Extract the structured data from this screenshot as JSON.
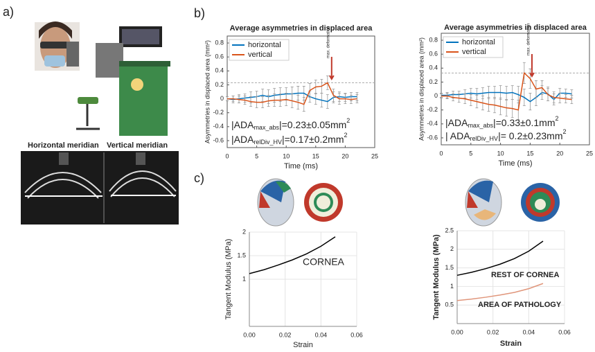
{
  "figure": {
    "panel_labels": [
      "a)",
      "b)",
      "c)"
    ],
    "photo_captions": [
      "Horizontal meridian",
      "Vertical meridian"
    ]
  },
  "chart_data": [
    {
      "type": "line",
      "title": "Average asymmetries in displaced area",
      "xlabel": "Time (ms)",
      "ylabel": "Asymmetries in displaced area (mm²)",
      "x": [
        0,
        1,
        2,
        3,
        4,
        5,
        6,
        7,
        8,
        9,
        10,
        11,
        12,
        13,
        14,
        15,
        16,
        17,
        18,
        19,
        20,
        21,
        22
      ],
      "xlim": [
        0,
        25
      ],
      "xticks": [
        0,
        5,
        10,
        15,
        20,
        25
      ],
      "ylim": [
        -0.7,
        0.9
      ],
      "yticks": [
        -0.6,
        -0.4,
        -0.2,
        0,
        0.2,
        0.4,
        0.6,
        0.8
      ],
      "legend": "upper left",
      "reference_line": 0.23,
      "marker_annotation": "max. deformation",
      "annotations": [
        [
          "|ADA",
          "max_abs",
          "|=0.23±0.05mm",
          "2"
        ],
        [
          "|ADA",
          "relDiv_HV",
          "|=0.17±0.2mm",
          "2"
        ]
      ],
      "series": [
        {
          "name": "horizontal",
          "color": "#0072bd",
          "values": [
            0,
            -0.01,
            0,
            0.01,
            0.02,
            0.03,
            0.05,
            0.03,
            0.05,
            0.06,
            0.07,
            0.07,
            0.08,
            0.08,
            0.03,
            0,
            -0.02,
            -0.04,
            0.02,
            0.03,
            0.02,
            0.03,
            0.03
          ],
          "errors": [
            0.03,
            0.05,
            0.06,
            0.06,
            0.08,
            0.08,
            0.09,
            0.1,
            0.1,
            0.1,
            0.09,
            0.1,
            0.1,
            0.1,
            0.08,
            0.08,
            0.1,
            0.1,
            0.08,
            0.07,
            0.06,
            0.06,
            0.06
          ]
        },
        {
          "name": "vertical",
          "color": "#d95319",
          "values": [
            0,
            0,
            -0.01,
            -0.02,
            -0.04,
            -0.05,
            -0.05,
            -0.03,
            -0.02,
            -0.02,
            -0.01,
            -0.03,
            -0.05,
            -0.08,
            0.12,
            0.17,
            0.18,
            0.23,
            0.05,
            0,
            0,
            -0.01,
            0
          ],
          "errors": [
            0.03,
            0.04,
            0.05,
            0.06,
            0.07,
            0.08,
            0.08,
            0.08,
            0.09,
            0.09,
            0.09,
            0.1,
            0.1,
            0.1,
            0.1,
            0.1,
            0.1,
            0.1,
            0.09,
            0.08,
            0.07,
            0.06,
            0.06
          ]
        }
      ]
    },
    {
      "type": "line",
      "title": "Average asymmetries in displaced area",
      "xlabel": "Time (ms)",
      "ylabel": "Asymmetries in displaced area (mm²)",
      "x": [
        0,
        1,
        2,
        3,
        4,
        5,
        6,
        7,
        8,
        9,
        10,
        11,
        12,
        13,
        14,
        15,
        16,
        17,
        18,
        19,
        20,
        21,
        22
      ],
      "xlim": [
        0,
        25
      ],
      "xticks": [
        0,
        5,
        10,
        15,
        20,
        25
      ],
      "ylim": [
        -0.7,
        0.9
      ],
      "yticks": [
        -0.6,
        -0.4,
        -0.2,
        0,
        0.2,
        0.4,
        0.6,
        0.8
      ],
      "legend": "upper left",
      "reference_line": 0.33,
      "marker_annotation": "max. deformation",
      "annotations": [
        [
          "|ADA",
          "max_abs",
          "|=0.33±0.1mm",
          "2"
        ],
        [
          "| ADA",
          "relDiv_HV",
          "|= 0.2±0.23mm",
          "2"
        ]
      ],
      "series": [
        {
          "name": "horizontal",
          "color": "#0072bd",
          "values": [
            0.01,
            0.01,
            0.02,
            0.02,
            0.03,
            0.04,
            0.03,
            0.04,
            0.05,
            0.05,
            0.05,
            0.04,
            0.05,
            0.02,
            -0.02,
            -0.08,
            -0.02,
            0.05,
            0.03,
            -0.05,
            0.04,
            0.04,
            0.03
          ],
          "errors": [
            0.03,
            0.04,
            0.05,
            0.05,
            0.06,
            0.07,
            0.08,
            0.08,
            0.09,
            0.09,
            0.1,
            0.1,
            0.1,
            0.12,
            0.12,
            0.12,
            0.12,
            0.1,
            0.1,
            0.08,
            0.07,
            0.06,
            0.06
          ]
        },
        {
          "name": "vertical",
          "color": "#d95319",
          "values": [
            0,
            0,
            -0.02,
            -0.03,
            -0.04,
            -0.06,
            -0.08,
            -0.1,
            -0.12,
            -0.13,
            -0.15,
            -0.17,
            -0.18,
            -0.2,
            0.33,
            0.25,
            0.1,
            0.12,
            0.02,
            -0.02,
            -0.03,
            -0.04,
            -0.05
          ],
          "errors": [
            0.03,
            0.04,
            0.05,
            0.06,
            0.07,
            0.08,
            0.09,
            0.1,
            0.1,
            0.11,
            0.12,
            0.12,
            0.13,
            0.14,
            0.15,
            0.14,
            0.12,
            0.1,
            0.09,
            0.08,
            0.07,
            0.06,
            0.06
          ]
        }
      ]
    },
    {
      "type": "line",
      "xlabel": "Strain",
      "ylabel": "Tangent Modulus (MPa)",
      "x": [
        0,
        0.008,
        0.016,
        0.024,
        0.032,
        0.04,
        0.048
      ],
      "xlim": [
        0,
        0.06
      ],
      "xticks": [
        {
          "value": 0,
          "label": "0.00"
        },
        {
          "value": 0.02,
          "label": "0.02"
        },
        {
          "value": 0.04,
          "label": "0.04"
        },
        {
          "value": 0.06,
          "label": "0.06"
        }
      ],
      "ylim": [
        0,
        2
      ],
      "yticks": [
        1,
        1.5,
        2
      ],
      "grid": true,
      "series": [
        {
          "name": "CORNEA",
          "color": "#000000",
          "values": [
            1.12,
            1.2,
            1.3,
            1.41,
            1.54,
            1.7,
            1.9
          ]
        }
      ]
    },
    {
      "type": "line",
      "xlabel": "Strain",
      "ylabel": "Tangent Modulus (MPa)",
      "x": [
        0,
        0.008,
        0.016,
        0.024,
        0.032,
        0.04,
        0.048
      ],
      "xlim": [
        0,
        0.06
      ],
      "xticks": [
        {
          "value": 0,
          "label": "0.00"
        },
        {
          "value": 0.02,
          "label": "0.02"
        },
        {
          "value": 0.04,
          "label": "0.04"
        },
        {
          "value": 0.06,
          "label": "0.06"
        }
      ],
      "ylim": [
        0,
        2.5
      ],
      "yticks": [
        0.5,
        1,
        1.5,
        2,
        2.5
      ],
      "grid": true,
      "series": [
        {
          "name": "REST OF CORNEA",
          "color": "#000000",
          "values": [
            1.3,
            1.38,
            1.48,
            1.6,
            1.75,
            1.95,
            2.22
          ]
        },
        {
          "name": "AREA OF PATHOLOGY",
          "color": "#e0957a",
          "values": [
            0.62,
            0.66,
            0.71,
            0.77,
            0.84,
            0.94,
            1.08
          ]
        }
      ]
    }
  ]
}
